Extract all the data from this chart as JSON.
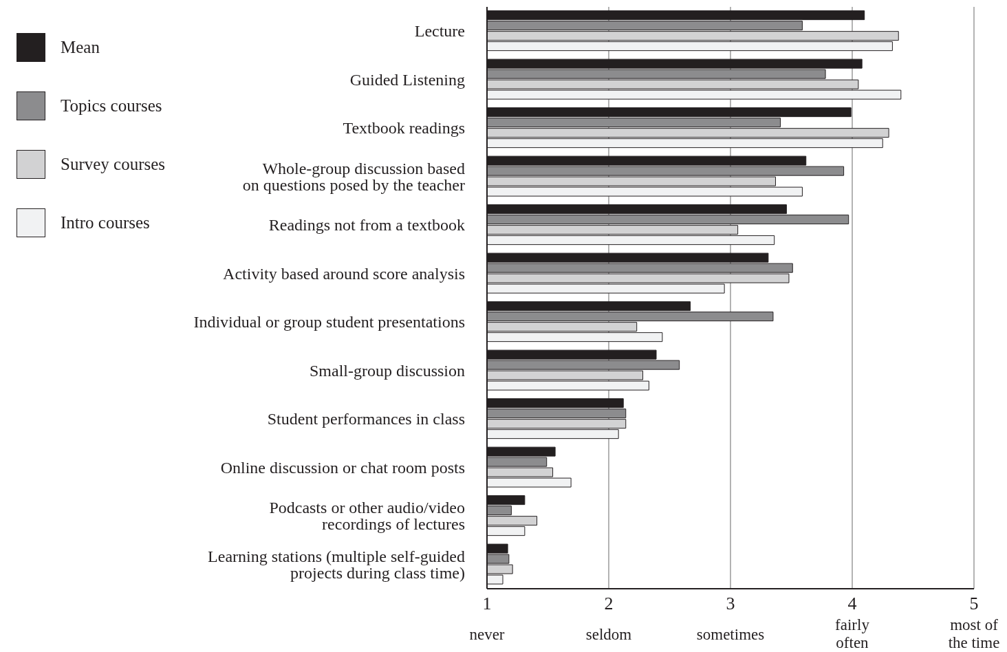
{
  "chart_data": {
    "type": "bar",
    "orientation": "horizontal",
    "categories": [
      "Lecture",
      "Guided Listening",
      "Textbook readings",
      "Whole-group discussion based\non questions posed by the teacher",
      "Readings not from a textbook",
      "Activity based around score analysis",
      "Individual or group student presentations",
      "Small-group discussion",
      "Student performances in class",
      "Online discussion or chat room posts",
      "Podcasts or other audio/video\nrecordings of lectures",
      "Learning stations (multiple self-guided\nprojects during class time)"
    ],
    "series": [
      {
        "name": "Mean",
        "color": "#231f20",
        "values": [
          4.1,
          4.08,
          3.99,
          3.62,
          3.46,
          3.31,
          2.67,
          2.39,
          2.12,
          1.56,
          1.31,
          1.17
        ]
      },
      {
        "name": "Topics courses",
        "color": "#8c8c8e",
        "values": [
          3.59,
          3.78,
          3.41,
          3.93,
          3.97,
          3.51,
          3.35,
          2.58,
          2.14,
          1.49,
          1.2,
          1.18
        ]
      },
      {
        "name": "Survey courses",
        "color": "#d2d2d3",
        "values": [
          4.38,
          4.05,
          4.3,
          3.37,
          3.06,
          3.48,
          2.23,
          2.28,
          2.14,
          1.54,
          1.41,
          1.21
        ]
      },
      {
        "name": "Intro courses",
        "color": "#f1f2f3",
        "values": [
          4.33,
          4.4,
          4.25,
          3.59,
          3.36,
          2.95,
          2.44,
          2.33,
          2.08,
          1.69,
          1.31,
          1.13
        ]
      }
    ],
    "xlim": [
      1,
      5
    ],
    "xticks": [
      {
        "value": 1,
        "label": "1\nnever"
      },
      {
        "value": 2,
        "label": "2\nseldom"
      },
      {
        "value": 3,
        "label": "3\nsometimes"
      },
      {
        "value": 4,
        "label": "4\nfairly\noften"
      },
      {
        "value": 5,
        "label": "5\nmost of\nthe time"
      }
    ],
    "grid": "x",
    "legend": "top left"
  }
}
